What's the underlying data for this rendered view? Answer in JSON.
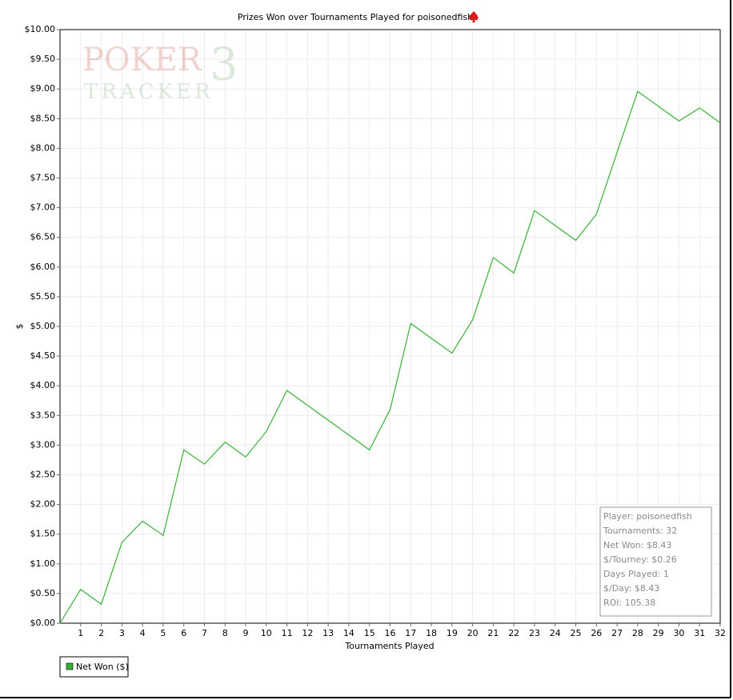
{
  "chart_data": {
    "type": "line",
    "title": "Prizes Won over Tournaments Played for poisonedfish",
    "xlabel": "Tournaments Played",
    "ylabel": "$",
    "x": [
      0,
      1,
      2,
      3,
      4,
      5,
      6,
      7,
      8,
      9,
      10,
      11,
      12,
      13,
      14,
      15,
      16,
      17,
      18,
      19,
      20,
      21,
      22,
      23,
      24,
      25,
      26,
      27,
      28,
      29,
      30,
      31,
      32
    ],
    "series": [
      {
        "name": "Net Won ($)",
        "color": "#36b136",
        "values": [
          0,
          0.57,
          0.32,
          1.36,
          1.72,
          1.48,
          2.92,
          2.68,
          3.05,
          2.8,
          3.23,
          3.92,
          3.67,
          3.42,
          3.17,
          2.92,
          3.6,
          5.05,
          4.8,
          4.55,
          5.11,
          6.16,
          5.9,
          6.95,
          6.7,
          6.45,
          6.89,
          7.93,
          8.96,
          8.71,
          8.46,
          8.68,
          8.43
        ]
      }
    ],
    "xlim": [
      0,
      32
    ],
    "xticks": [
      1,
      2,
      3,
      4,
      5,
      6,
      7,
      8,
      9,
      10,
      11,
      12,
      13,
      14,
      15,
      16,
      17,
      18,
      19,
      20,
      21,
      22,
      23,
      24,
      25,
      26,
      27,
      28,
      29,
      30,
      31,
      32
    ],
    "ylim": [
      0,
      10
    ],
    "yticks": [
      {
        "value": 0,
        "label": "$0.00"
      },
      {
        "value": 0.5,
        "label": "$0.50"
      },
      {
        "value": 1,
        "label": "$1.00"
      },
      {
        "value": 1.5,
        "label": "$1.50"
      },
      {
        "value": 2,
        "label": "$2.00"
      },
      {
        "value": 2.5,
        "label": "$2.50"
      },
      {
        "value": 3,
        "label": "$3.00"
      },
      {
        "value": 3.5,
        "label": "$3.50"
      },
      {
        "value": 4,
        "label": "$4.00"
      },
      {
        "value": 4.5,
        "label": "$4.50"
      },
      {
        "value": 5,
        "label": "$5.00"
      },
      {
        "value": 5.5,
        "label": "$5.50"
      },
      {
        "value": 6,
        "label": "$6.00"
      },
      {
        "value": 6.5,
        "label": "$6.50"
      },
      {
        "value": 7,
        "label": "$7.00"
      },
      {
        "value": 7.5,
        "label": "$7.50"
      },
      {
        "value": 8,
        "label": "$8.00"
      },
      {
        "value": 8.5,
        "label": "$8.50"
      },
      {
        "value": 9,
        "label": "$9.00"
      },
      {
        "value": 9.5,
        "label": "$9.50"
      },
      {
        "value": 10,
        "label": "$10.00"
      }
    ],
    "grid": true,
    "info_box": [
      "Player: poisonedfish",
      "Tournaments: 32",
      "Net Won: $8.43",
      "$/Tourney: $0.26",
      "Days Played: 1",
      "$/Day: $8.43",
      "ROI: 105.38"
    ],
    "watermark": [
      "POKER",
      "3",
      "TRACKER"
    ]
  }
}
